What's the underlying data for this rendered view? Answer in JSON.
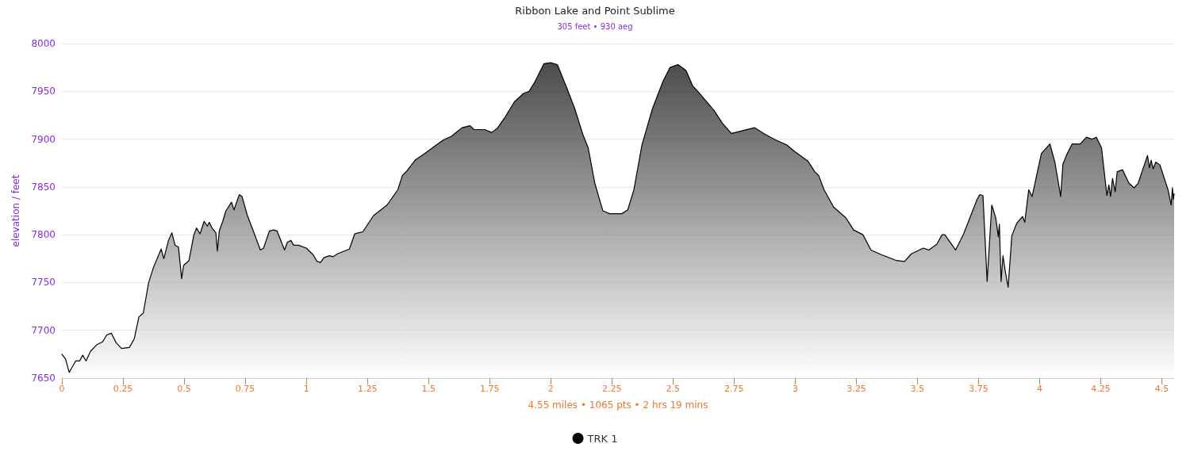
{
  "chart_data": {
    "type": "area",
    "title": "Ribbon Lake and Point Sublime",
    "subtitle": "305 feet • 930 aeg",
    "xlabel": "4.55 miles • 1065 pts • 2 hrs 19 mins",
    "ylabel": "elevation / feet",
    "xlim": [
      0,
      4.55
    ],
    "xticks": [
      0,
      0.25,
      0.5,
      0.75,
      1,
      1.25,
      1.5,
      1.75,
      2,
      2.25,
      2.5,
      2.75,
      3,
      3.25,
      3.5,
      3.75,
      4,
      4.25,
      4.5
    ],
    "ylim": [
      7650,
      8000
    ],
    "yticks": [
      7650,
      7700,
      7750,
      7800,
      7850,
      7900,
      7950,
      8000
    ],
    "grid": "y",
    "legend": "bottom",
    "marker": "none",
    "line_style": "solid",
    "series": [
      {
        "name": "TRK 1",
        "color": "#000000",
        "x": [
          0,
          0.015,
          0.03,
          0.057,
          0.073,
          0.085,
          0.099,
          0.117,
          0.143,
          0.167,
          0.183,
          0.202,
          0.222,
          0.244,
          0.276,
          0.296,
          0.315,
          0.333,
          0.355,
          0.375,
          0.406,
          0.417,
          0.436,
          0.45,
          0.463,
          0.477,
          0.49,
          0.498,
          0.52,
          0.54,
          0.551,
          0.565,
          0.582,
          0.595,
          0.603,
          0.617,
          0.63,
          0.636,
          0.644,
          0.658,
          0.671,
          0.694,
          0.704,
          0.726,
          0.737,
          0.759,
          0.786,
          0.812,
          0.825,
          0.849,
          0.867,
          0.88,
          0.911,
          0.922,
          0.937,
          0.948,
          0.968,
          1.0,
          1.028,
          1.044,
          1.058,
          1.072,
          1.094,
          1.11,
          1.127,
          1.176,
          1.198,
          1.231,
          1.275,
          1.33,
          1.374,
          1.393,
          1.412,
          1.445,
          1.484,
          1.527,
          1.56,
          1.593,
          1.637,
          1.67,
          1.686,
          1.73,
          1.758,
          1.78,
          1.813,
          1.851,
          1.889,
          1.911,
          1.933,
          1.972,
          1.999,
          2.027,
          2.065,
          2.098,
          2.131,
          2.153,
          2.18,
          2.213,
          2.241,
          2.29,
          2.315,
          2.34,
          2.373,
          2.416,
          2.46,
          2.488,
          2.52,
          2.553,
          2.58,
          2.608,
          2.668,
          2.701,
          2.739,
          2.772,
          2.833,
          2.877,
          2.921,
          2.965,
          2.998,
          3.052,
          3.08,
          3.096,
          3.118,
          3.157,
          3.206,
          3.239,
          3.277,
          3.31,
          3.354,
          3.414,
          3.447,
          3.475,
          3.524,
          3.546,
          3.579,
          3.601,
          3.612,
          3.656,
          3.689,
          3.744,
          3.755,
          3.768,
          3.785,
          3.804,
          3.82,
          3.831,
          3.835,
          3.842,
          3.85,
          3.859,
          3.871,
          3.886,
          3.906,
          3.93,
          3.939,
          3.955,
          3.969,
          3.98,
          4.007,
          4.042,
          4.062,
          4.086,
          4.095,
          4.111,
          4.133,
          4.166,
          4.191,
          4.215,
          4.232,
          4.253,
          4.275,
          4.283,
          4.29,
          4.298,
          4.309,
          4.317,
          4.339,
          4.365,
          4.386,
          4.403,
          4.441,
          4.449,
          4.456,
          4.464,
          4.475,
          4.492,
          4.525,
          4.538,
          4.543,
          4.547,
          4.55
        ],
        "values": [
          7675,
          7670,
          7656,
          7668,
          7668,
          7674,
          7668,
          7678,
          7685,
          7688,
          7695,
          7697,
          7687,
          7681,
          7682,
          7691,
          7714,
          7718,
          7750,
          7766,
          7785,
          7775,
          7794,
          7802,
          7789,
          7787,
          7754,
          7768,
          7773,
          7800,
          7807,
          7801,
          7814,
          7809,
          7813,
          7806,
          7802,
          7783,
          7804,
          7814,
          7825,
          7834,
          7826,
          7842,
          7840,
          7820,
          7802,
          7784,
          7786,
          7804,
          7805,
          7804,
          7784,
          7792,
          7794,
          7789,
          7789,
          7786,
          7779,
          7772,
          7771,
          7776,
          7778,
          7777,
          7780,
          7785,
          7801,
          7803,
          7820,
          7831,
          7847,
          7862,
          7867,
          7878,
          7885,
          7893,
          7899,
          7903,
          7912,
          7914,
          7910,
          7910,
          7907,
          7911,
          7923,
          7939,
          7948,
          7950,
          7959,
          7979,
          7980,
          7978,
          7954,
          7932,
          7905,
          7891,
          7854,
          7825,
          7822,
          7822,
          7826,
          7847,
          7894,
          7932,
          7961,
          7975,
          7978,
          7972,
          7956,
          7948,
          7930,
          7917,
          7906,
          7908,
          7912,
          7905,
          7899,
          7894,
          7887,
          7877,
          7866,
          7862,
          7847,
          7829,
          7818,
          7805,
          7800,
          7784,
          7779,
          7773,
          7772,
          7780,
          7786,
          7784,
          7790,
          7800,
          7800,
          7784,
          7801,
          7837,
          7842,
          7841,
          7751,
          7831,
          7818,
          7798,
          7811,
          7751,
          7778,
          7762,
          7745,
          7799,
          7812,
          7819,
          7813,
          7847,
          7840,
          7853,
          7885,
          7895,
          7876,
          7840,
          7874,
          7884,
          7895,
          7895,
          7902,
          7900,
          7902,
          7891,
          7841,
          7852,
          7840,
          7859,
          7845,
          7866,
          7868,
          7854,
          7849,
          7854,
          7883,
          7870,
          7878,
          7869,
          7876,
          7873,
          7847,
          7831,
          7849,
          7837,
          7843
        ]
      }
    ]
  }
}
